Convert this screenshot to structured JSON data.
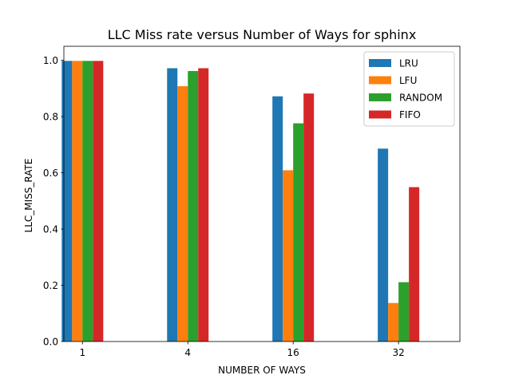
{
  "chart_data": {
    "type": "bar",
    "title": "LLC Miss rate versus Number of Ways for sphinx",
    "xlabel": "NUMBER OF WAYS",
    "ylabel": "LLC_MISS_RATE",
    "categories": [
      "1",
      "4",
      "16",
      "32"
    ],
    "ylim": [
      0,
      1.05
    ],
    "yticks": [
      "0.0",
      "0.2",
      "0.4",
      "0.6",
      "0.8",
      "1.0"
    ],
    "grid": false,
    "legend_position": "top-right",
    "series": [
      {
        "name": "LRU",
        "color": "#1f77b4",
        "values": [
          0.998,
          0.972,
          0.872,
          0.686
        ]
      },
      {
        "name": "LFU",
        "color": "#ff7f0e",
        "values": [
          0.998,
          0.908,
          0.609,
          0.137
        ]
      },
      {
        "name": "RANDOM",
        "color": "#2ca02c",
        "values": [
          0.998,
          0.962,
          0.776,
          0.211
        ]
      },
      {
        "name": "FIFO",
        "color": "#d62728",
        "values": [
          0.998,
          0.972,
          0.882,
          0.549
        ]
      }
    ]
  }
}
